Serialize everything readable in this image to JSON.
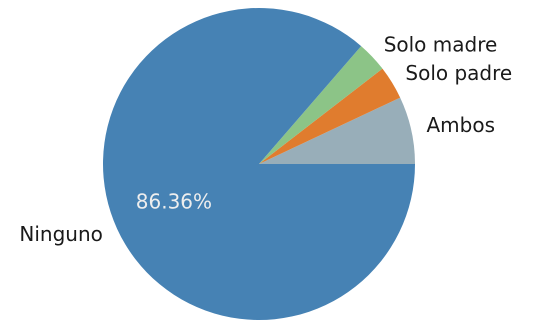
{
  "chart_data": {
    "type": "pie",
    "title": "",
    "start_angle_deg": 0,
    "direction": "counterclockwise",
    "slices": [
      {
        "label": "Ambos",
        "value": 7.0,
        "color": "#98aeb9",
        "pct_text": ""
      },
      {
        "label": "Solo padre",
        "value": 3.47,
        "color": "#e07c2e",
        "pct_text": ""
      },
      {
        "label": "Solo madre",
        "value": 3.17,
        "color": "#8cc487",
        "pct_text": ""
      },
      {
        "label": "Ninguno",
        "value": 86.36,
        "color": "#4682b4",
        "pct_text": "86.36%"
      }
    ],
    "legend": "none",
    "grid": false
  }
}
